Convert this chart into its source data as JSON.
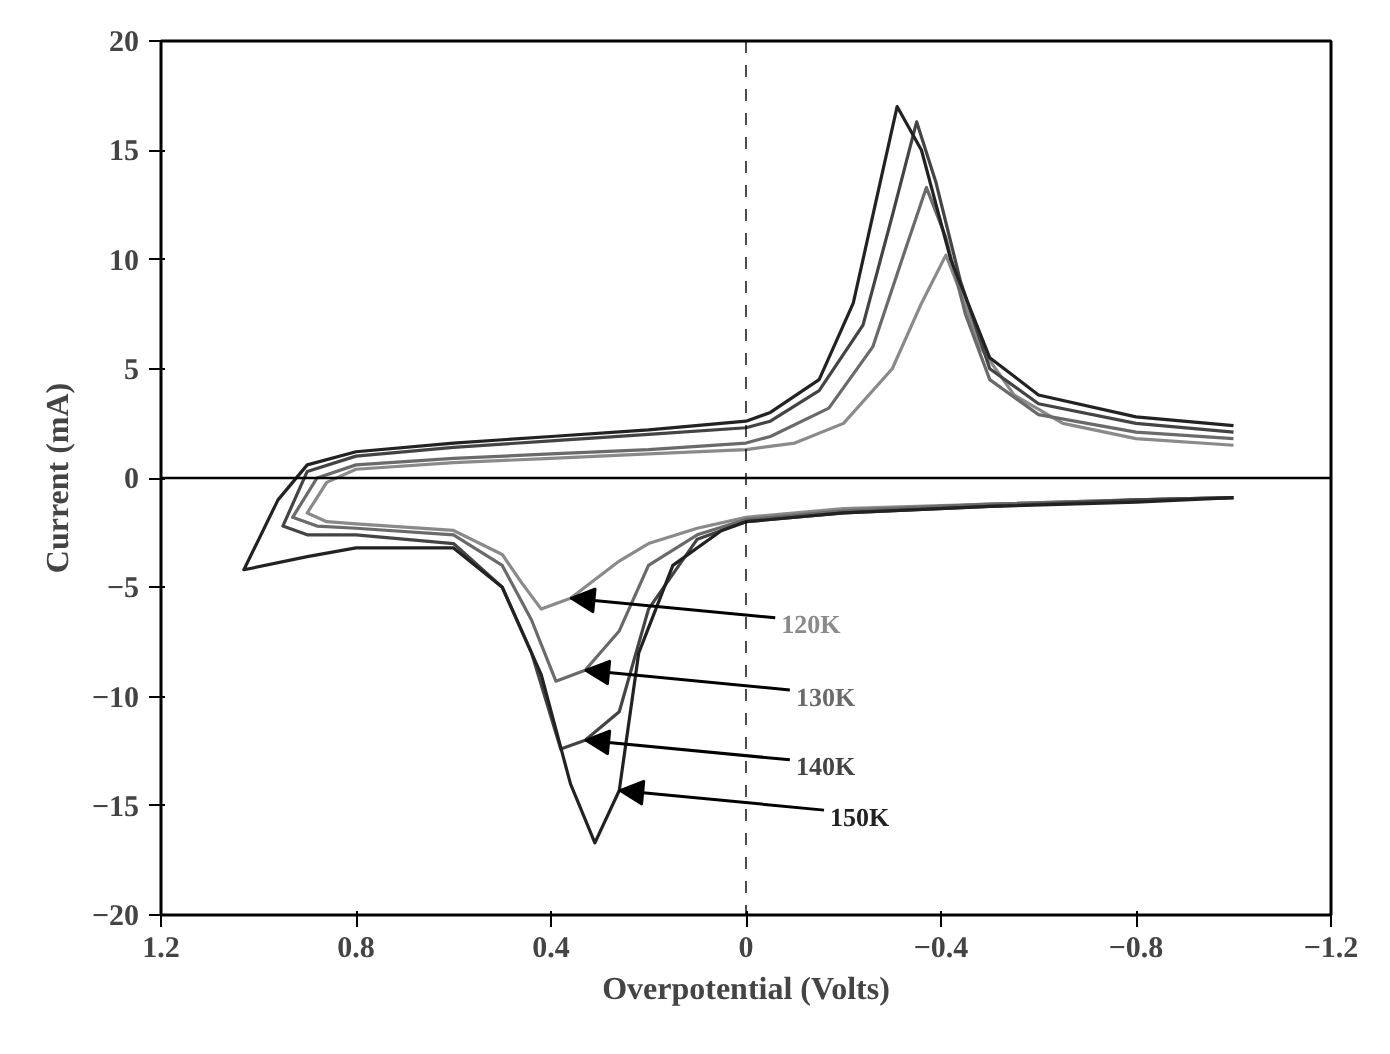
{
  "chart_data": {
    "type": "line",
    "xlabel": "Overpotential (Volts)",
    "ylabel": "Current (mA)",
    "xlim": [
      1.2,
      -1.2
    ],
    "xticks": [
      1.2,
      0.8,
      0.4,
      0,
      -0.4,
      -0.8,
      -1.2
    ],
    "ylim": [
      -20,
      20
    ],
    "yticks": [
      -20,
      -15,
      -10,
      -5,
      0,
      5,
      10,
      15,
      20
    ],
    "grid": false,
    "marker": "none",
    "line_style": "solid",
    "ref_lines": [
      {
        "axis": "y",
        "value": 0,
        "line_style": "solid"
      },
      {
        "axis": "x",
        "value": 0,
        "line_style": "dashed"
      }
    ],
    "series": [
      {
        "name": "120K",
        "color": "#8a8a8a",
        "x": [
          -1.0,
          -0.8,
          -0.65,
          -0.55,
          -0.48,
          -0.44,
          -0.41,
          -0.36,
          -0.3,
          -0.2,
          -0.1,
          0.0,
          0.2,
          0.4,
          0.6,
          0.8,
          0.86,
          0.9,
          0.86,
          0.8,
          0.6,
          0.5,
          0.46,
          0.42,
          0.36,
          0.26,
          0.2,
          0.1,
          0.0,
          -0.2,
          -0.5,
          -0.8,
          -1.0
        ],
        "values": [
          1.5,
          1.8,
          2.5,
          3.8,
          6,
          8.5,
          10.2,
          8,
          5,
          2.5,
          1.6,
          1.3,
          1.1,
          0.9,
          0.7,
          0.4,
          -0.2,
          -1.6,
          -2,
          -2.1,
          -2.4,
          -3.5,
          -4.8,
          -6,
          -5.5,
          -3.8,
          -3,
          -2.3,
          -1.8,
          -1.4,
          -1.2,
          -1.0,
          -0.9
        ]
      },
      {
        "name": "130K",
        "color": "#6a6a6a",
        "x": [
          -1.0,
          -0.8,
          -0.6,
          -0.5,
          -0.45,
          -0.41,
          -0.37,
          -0.32,
          -0.26,
          -0.17,
          -0.05,
          0.0,
          0.2,
          0.4,
          0.6,
          0.8,
          0.88,
          0.93,
          0.88,
          0.8,
          0.6,
          0.5,
          0.44,
          0.39,
          0.33,
          0.26,
          0.2,
          0.1,
          0.0,
          -0.2,
          -0.5,
          -0.8,
          -1.0
        ],
        "values": [
          1.8,
          2.1,
          2.9,
          4.5,
          7.5,
          11,
          13.3,
          10,
          6,
          3.2,
          1.9,
          1.6,
          1.3,
          1.1,
          0.9,
          0.6,
          0,
          -1.8,
          -2.2,
          -2.3,
          -2.6,
          -4,
          -6.5,
          -9.3,
          -8.8,
          -7,
          -4,
          -2.6,
          -1.9,
          -1.5,
          -1.2,
          -1.0,
          -0.9
        ]
      },
      {
        "name": "140K",
        "color": "#444444",
        "x": [
          -1.0,
          -0.8,
          -0.6,
          -0.5,
          -0.44,
          -0.39,
          -0.35,
          -0.3,
          -0.24,
          -0.15,
          -0.05,
          0.0,
          0.2,
          0.4,
          0.6,
          0.8,
          0.9,
          0.95,
          0.9,
          0.8,
          0.6,
          0.5,
          0.44,
          0.38,
          0.33,
          0.26,
          0.2,
          0.1,
          0.0,
          -0.2,
          -0.5,
          -0.8,
          -1.0
        ],
        "values": [
          2.1,
          2.5,
          3.4,
          5,
          9,
          13.5,
          16.3,
          12,
          7,
          4,
          2.6,
          2.3,
          2,
          1.7,
          1.4,
          1.0,
          0.3,
          -2.2,
          -2.6,
          -2.6,
          -3,
          -5,
          -8,
          -12.4,
          -12,
          -10.7,
          -6,
          -2.8,
          -2,
          -1.6,
          -1.3,
          -1.0,
          -0.9
        ]
      },
      {
        "name": "150K",
        "color": "#222222",
        "x": [
          -1.0,
          -0.8,
          -0.6,
          -0.5,
          -0.42,
          -0.36,
          -0.31,
          -0.27,
          -0.22,
          -0.15,
          -0.05,
          0.0,
          0.2,
          0.4,
          0.6,
          0.8,
          0.9,
          0.96,
          1.03,
          0.9,
          0.8,
          0.6,
          0.5,
          0.42,
          0.36,
          0.31,
          0.26,
          0.22,
          0.15,
          0.05,
          0.0,
          -0.2,
          -0.5,
          -0.8,
          -1.0
        ],
        "values": [
          2.4,
          2.8,
          3.8,
          5.5,
          10,
          15,
          17,
          13,
          8,
          4.5,
          3,
          2.6,
          2.2,
          1.9,
          1.6,
          1.2,
          0.6,
          -1,
          -4.2,
          -3.6,
          -3.2,
          -3.2,
          -5,
          -9,
          -14,
          -16.7,
          -14.3,
          -8,
          -4,
          -2.4,
          -2,
          -1.6,
          -1.3,
          -1.1,
          -0.9
        ]
      }
    ]
  }
}
